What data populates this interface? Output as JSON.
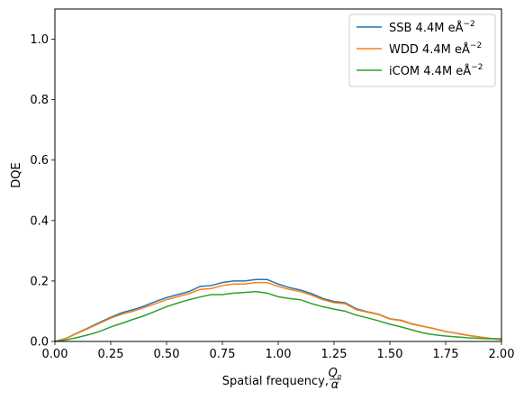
{
  "chart_data": {
    "type": "line",
    "title": "",
    "xlabel": "Spatial frequency, ",
    "xlabel_fraction": {
      "numerator": "Q",
      "numerator_sub": "p",
      "denominator": "α"
    },
    "ylabel": "DQE",
    "xlim": [
      0,
      2.0
    ],
    "ylim": [
      0,
      1.1
    ],
    "xticks": [
      "0.00",
      "0.25",
      "0.50",
      "0.75",
      "1.00",
      "1.25",
      "1.50",
      "1.75",
      "2.00"
    ],
    "xtick_values": [
      0,
      0.25,
      0.5,
      0.75,
      1.0,
      1.25,
      1.5,
      1.75,
      2.0
    ],
    "yticks": [
      "0.0",
      "0.2",
      "0.4",
      "0.6",
      "0.8",
      "1.0"
    ],
    "ytick_values": [
      0,
      0.2,
      0.4,
      0.6,
      0.8,
      1.0
    ],
    "grid": false,
    "legend_position": "top-right",
    "series": [
      {
        "name": "SSB 4.4M eÅ",
        "name_sup": "−2",
        "color": "#1f77b4",
        "x": [
          0,
          0.05,
          0.1,
          0.15,
          0.2,
          0.25,
          0.3,
          0.35,
          0.4,
          0.45,
          0.5,
          0.55,
          0.6,
          0.65,
          0.7,
          0.75,
          0.8,
          0.85,
          0.9,
          0.95,
          1.0,
          1.05,
          1.1,
          1.15,
          1.2,
          1.25,
          1.3,
          1.35,
          1.4,
          1.45,
          1.5,
          1.55,
          1.6,
          1.65,
          1.7,
          1.75,
          1.8,
          1.85,
          1.9,
          1.95,
          2.0
        ],
        "y": [
          0.0,
          0.01,
          0.028,
          0.045,
          0.063,
          0.08,
          0.095,
          0.105,
          0.117,
          0.132,
          0.145,
          0.155,
          0.165,
          0.182,
          0.185,
          0.195,
          0.2,
          0.2,
          0.205,
          0.205,
          0.19,
          0.178,
          0.17,
          0.158,
          0.142,
          0.132,
          0.128,
          0.108,
          0.098,
          0.09,
          0.075,
          0.07,
          0.058,
          0.05,
          0.042,
          0.033,
          0.027,
          0.02,
          0.015,
          0.01,
          0.006
        ]
      },
      {
        "name": "WDD 4.4M eÅ",
        "name_sup": "−2",
        "color": "#ff7f0e",
        "x": [
          0,
          0.05,
          0.1,
          0.15,
          0.2,
          0.25,
          0.3,
          0.35,
          0.4,
          0.45,
          0.5,
          0.55,
          0.6,
          0.65,
          0.7,
          0.75,
          0.8,
          0.85,
          0.9,
          0.95,
          1.0,
          1.05,
          1.1,
          1.15,
          1.2,
          1.25,
          1.3,
          1.35,
          1.4,
          1.45,
          1.5,
          1.55,
          1.6,
          1.65,
          1.7,
          1.75,
          1.8,
          1.85,
          1.9,
          1.95,
          2.0
        ],
        "y": [
          0.0,
          0.01,
          0.027,
          0.043,
          0.06,
          0.077,
          0.09,
          0.1,
          0.112,
          0.125,
          0.138,
          0.148,
          0.158,
          0.172,
          0.175,
          0.185,
          0.19,
          0.19,
          0.195,
          0.195,
          0.182,
          0.172,
          0.165,
          0.153,
          0.138,
          0.128,
          0.125,
          0.105,
          0.097,
          0.089,
          0.074,
          0.069,
          0.057,
          0.05,
          0.042,
          0.033,
          0.027,
          0.02,
          0.015,
          0.01,
          0.006
        ]
      },
      {
        "name": "iCOM 4.4M eÅ",
        "name_sup": "−2",
        "color": "#2ca02c",
        "x": [
          0,
          0.05,
          0.1,
          0.15,
          0.2,
          0.25,
          0.3,
          0.35,
          0.4,
          0.45,
          0.5,
          0.55,
          0.6,
          0.65,
          0.7,
          0.75,
          0.8,
          0.85,
          0.9,
          0.95,
          1.0,
          1.05,
          1.1,
          1.15,
          1.2,
          1.25,
          1.3,
          1.35,
          1.4,
          1.45,
          1.5,
          1.55,
          1.6,
          1.65,
          1.7,
          1.75,
          1.8,
          1.85,
          1.9,
          1.95,
          2.0
        ],
        "y": [
          0.0,
          0.005,
          0.013,
          0.022,
          0.033,
          0.048,
          0.06,
          0.073,
          0.085,
          0.1,
          0.115,
          0.127,
          0.138,
          0.147,
          0.155,
          0.155,
          0.16,
          0.162,
          0.165,
          0.16,
          0.148,
          0.142,
          0.138,
          0.125,
          0.115,
          0.107,
          0.1,
          0.087,
          0.078,
          0.068,
          0.057,
          0.048,
          0.038,
          0.028,
          0.022,
          0.018,
          0.015,
          0.012,
          0.01,
          0.009,
          0.009
        ]
      }
    ]
  }
}
